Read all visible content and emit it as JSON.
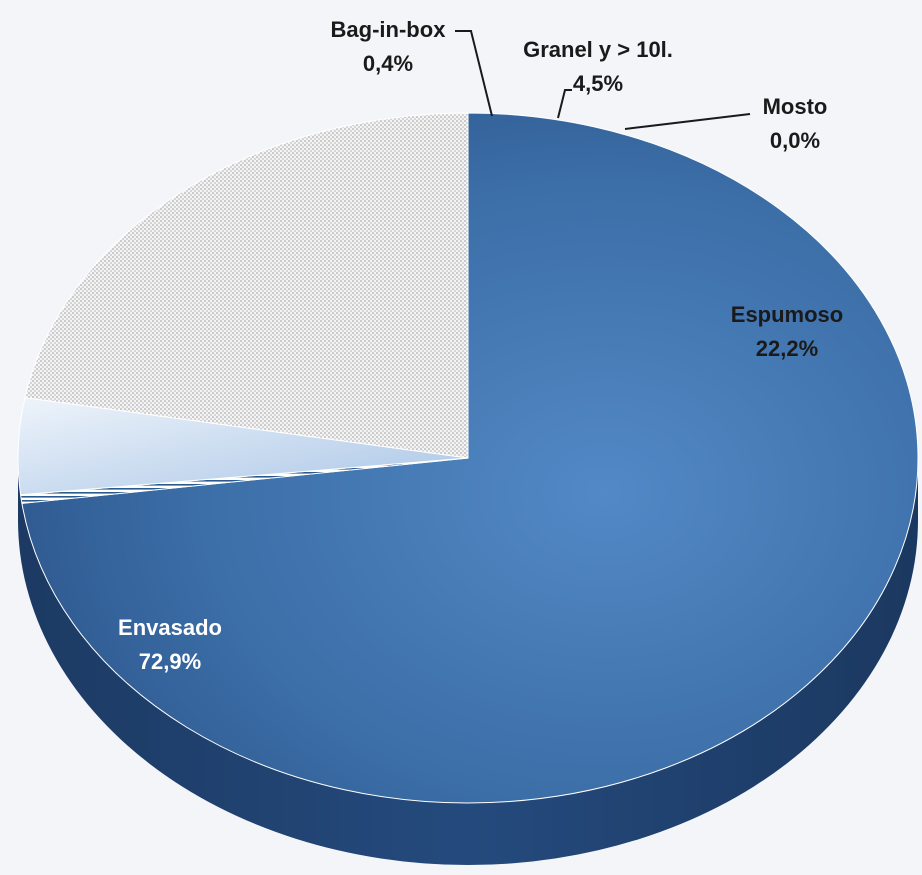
{
  "chart_data": {
    "type": "pie",
    "title": "",
    "legend": "none",
    "slices": [
      {
        "name": "Envasado",
        "value": 72.9,
        "label": "72,9%",
        "color": "#3d6fa8"
      },
      {
        "name": "Bag-in-box",
        "value": 0.4,
        "label": "0,4%",
        "color": "#ffffff"
      },
      {
        "name": "Granel y > 10l.",
        "value": 4.5,
        "label": "4,5%",
        "color": "#c9dbef"
      },
      {
        "name": "Mosto",
        "value": 0.0,
        "label": "0,0%",
        "color": "#dfe3ea"
      },
      {
        "name": "Espumoso",
        "value": 22.2,
        "label": "22,2%",
        "color": "#eeeeee"
      }
    ]
  }
}
